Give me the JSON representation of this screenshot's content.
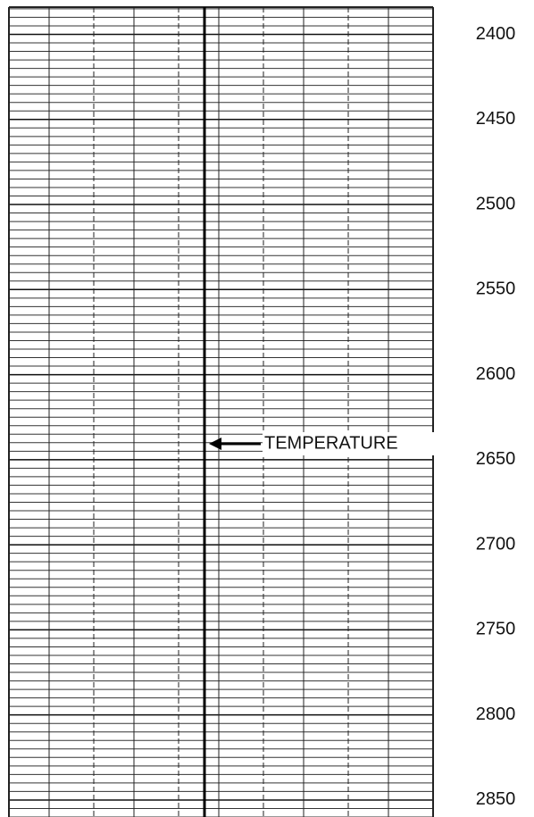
{
  "chart_data": {
    "type": "depth-log",
    "annotation": "TEMPERATURE",
    "ylim": [
      2384,
      2860
    ],
    "yticks": [
      2400,
      2450,
      2500,
      2550,
      2600,
      2650,
      2700,
      2750,
      2800,
      2850
    ],
    "grid": true
  }
}
